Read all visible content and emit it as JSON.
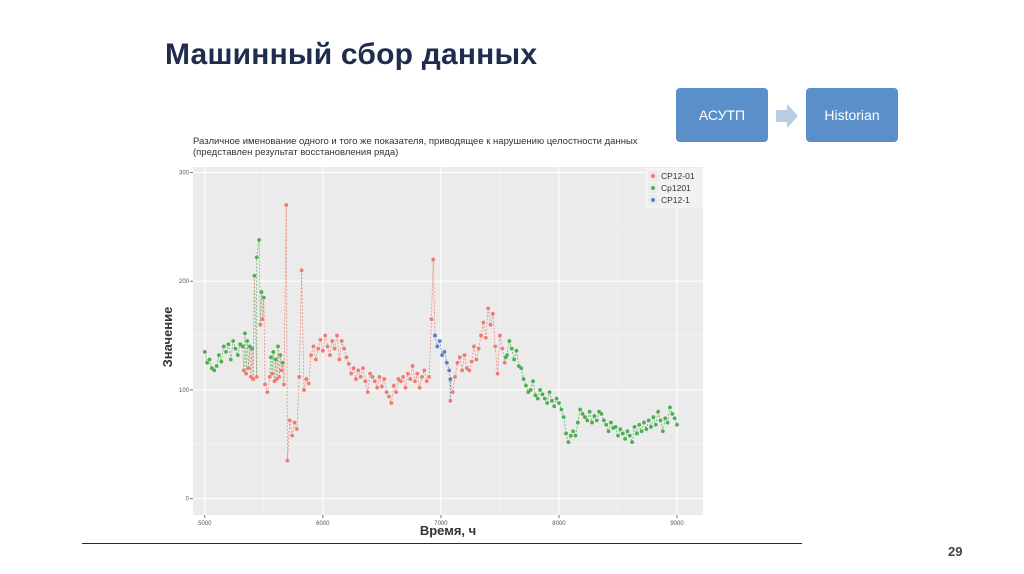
{
  "slide": {
    "title": "Машинный сбор данных",
    "page_number": "29"
  },
  "flow": {
    "from_label": "АСУТП",
    "to_label": "Historian",
    "box_color": "#5b8fc9",
    "arrow_color": "#b8cce4"
  },
  "chart_data": {
    "type": "scatter",
    "title": "Различное именование одного и того же показателя, приводящее к нарушению целостности данных",
    "subtitle": "(представлен результат восстановления ряда)",
    "xlabel": "Время, ч",
    "ylabel": "Значение",
    "xlim": [
      4900,
      9220
    ],
    "ylim": [
      -15,
      305
    ],
    "xticks": [
      5000,
      6000,
      7000,
      8000,
      9000
    ],
    "yticks": [
      0,
      100,
      200,
      300
    ],
    "grid": true,
    "background": "#ebebeb",
    "legend_position": "top-right",
    "connected_by_dashed_line": true,
    "series": [
      {
        "name": "CP12-01",
        "color": "#f07b72",
        "points": [
          [
            5330,
            118
          ],
          [
            5350,
            115
          ],
          [
            5370,
            120
          ],
          [
            5390,
            112
          ],
          [
            5410,
            110
          ],
          [
            5440,
            112
          ],
          [
            5470,
            160
          ],
          [
            5490,
            165
          ],
          [
            5510,
            105
          ],
          [
            5530,
            98
          ],
          [
            5550,
            112
          ],
          [
            5570,
            115
          ],
          [
            5590,
            108
          ],
          [
            5610,
            110
          ],
          [
            5630,
            112
          ],
          [
            5650,
            118
          ],
          [
            5670,
            105
          ],
          [
            5690,
            270
          ],
          [
            5700,
            35
          ],
          [
            5720,
            72
          ],
          [
            5740,
            58
          ],
          [
            5760,
            70
          ],
          [
            5780,
            64
          ],
          [
            5800,
            112
          ],
          [
            5820,
            210
          ],
          [
            5840,
            100
          ],
          [
            5860,
            110
          ],
          [
            5880,
            106
          ],
          [
            5900,
            132
          ],
          [
            5920,
            140
          ],
          [
            5940,
            128
          ],
          [
            5960,
            138
          ],
          [
            5980,
            146
          ],
          [
            6000,
            136
          ],
          [
            6020,
            150
          ],
          [
            6040,
            140
          ],
          [
            6060,
            132
          ],
          [
            6080,
            145
          ],
          [
            6100,
            138
          ],
          [
            6120,
            150
          ],
          [
            6140,
            128
          ],
          [
            6160,
            145
          ],
          [
            6180,
            138
          ],
          [
            6200,
            130
          ],
          [
            6220,
            124
          ],
          [
            6240,
            115
          ],
          [
            6260,
            120
          ],
          [
            6280,
            110
          ],
          [
            6300,
            118
          ],
          [
            6320,
            112
          ],
          [
            6340,
            120
          ],
          [
            6360,
            108
          ],
          [
            6380,
            98
          ],
          [
            6400,
            115
          ],
          [
            6420,
            112
          ],
          [
            6440,
            108
          ],
          [
            6460,
            102
          ],
          [
            6480,
            112
          ],
          [
            6500,
            103
          ],
          [
            6520,
            110
          ],
          [
            6540,
            98
          ],
          [
            6560,
            94
          ],
          [
            6580,
            88
          ],
          [
            6600,
            104
          ],
          [
            6620,
            98
          ],
          [
            6640,
            110
          ],
          [
            6660,
            108
          ],
          [
            6680,
            112
          ],
          [
            6700,
            102
          ],
          [
            6720,
            115
          ],
          [
            6740,
            110
          ],
          [
            6760,
            122
          ],
          [
            6780,
            108
          ],
          [
            6800,
            115
          ],
          [
            6820,
            102
          ],
          [
            6840,
            112
          ],
          [
            6860,
            118
          ],
          [
            6880,
            108
          ],
          [
            6900,
            112
          ],
          [
            6920,
            165
          ],
          [
            6935,
            220
          ],
          [
            6950,
            150
          ],
          [
            7080,
            90
          ],
          [
            7100,
            98
          ],
          [
            7120,
            112
          ],
          [
            7140,
            125
          ],
          [
            7160,
            130
          ],
          [
            7180,
            118
          ],
          [
            7200,
            132
          ],
          [
            7220,
            120
          ],
          [
            7240,
            118
          ],
          [
            7260,
            126
          ],
          [
            7280,
            140
          ],
          [
            7300,
            128
          ],
          [
            7320,
            138
          ],
          [
            7340,
            150
          ],
          [
            7360,
            162
          ],
          [
            7380,
            148
          ],
          [
            7400,
            175
          ],
          [
            7420,
            160
          ],
          [
            7440,
            170
          ],
          [
            7460,
            140
          ],
          [
            7480,
            115
          ],
          [
            7500,
            150
          ],
          [
            7520,
            138
          ],
          [
            7540,
            125
          ]
        ]
      },
      {
        "name": "Cp1201",
        "color": "#4cb050",
        "points": [
          [
            5000,
            135
          ],
          [
            5020,
            125
          ],
          [
            5040,
            128
          ],
          [
            5060,
            120
          ],
          [
            5080,
            118
          ],
          [
            5100,
            122
          ],
          [
            5120,
            132
          ],
          [
            5140,
            126
          ],
          [
            5160,
            140
          ],
          [
            5180,
            135
          ],
          [
            5200,
            142
          ],
          [
            5220,
            128
          ],
          [
            5240,
            145
          ],
          [
            5260,
            138
          ],
          [
            5280,
            132
          ],
          [
            5300,
            142
          ],
          [
            5320,
            140
          ],
          [
            5340,
            152
          ],
          [
            5360,
            145
          ],
          [
            5380,
            140
          ],
          [
            5400,
            138
          ],
          [
            5420,
            205
          ],
          [
            5440,
            222
          ],
          [
            5460,
            238
          ],
          [
            5480,
            190
          ],
          [
            5500,
            185
          ],
          [
            5560,
            130
          ],
          [
            5580,
            135
          ],
          [
            5600,
            128
          ],
          [
            5620,
            140
          ],
          [
            5640,
            132
          ],
          [
            5660,
            125
          ],
          [
            7550,
            130
          ],
          [
            7560,
            132
          ],
          [
            7580,
            145
          ],
          [
            7600,
            138
          ],
          [
            7620,
            128
          ],
          [
            7640,
            136
          ],
          [
            7660,
            122
          ],
          [
            7680,
            120
          ],
          [
            7700,
            110
          ],
          [
            7720,
            104
          ],
          [
            7740,
            98
          ],
          [
            7760,
            100
          ],
          [
            7780,
            108
          ],
          [
            7800,
            95
          ],
          [
            7820,
            92
          ],
          [
            7840,
            100
          ],
          [
            7860,
            96
          ],
          [
            7880,
            92
          ],
          [
            7900,
            88
          ],
          [
            7920,
            98
          ],
          [
            7940,
            90
          ],
          [
            7960,
            85
          ],
          [
            7980,
            92
          ],
          [
            8000,
            88
          ],
          [
            8020,
            82
          ],
          [
            8040,
            75
          ],
          [
            8060,
            60
          ],
          [
            8080,
            52
          ],
          [
            8100,
            58
          ],
          [
            8120,
            62
          ],
          [
            8140,
            58
          ],
          [
            8160,
            70
          ],
          [
            8180,
            82
          ],
          [
            8200,
            78
          ],
          [
            8220,
            75
          ],
          [
            8240,
            72
          ],
          [
            8260,
            80
          ],
          [
            8280,
            70
          ],
          [
            8300,
            76
          ],
          [
            8320,
            72
          ],
          [
            8340,
            80
          ],
          [
            8360,
            78
          ],
          [
            8380,
            72
          ],
          [
            8400,
            68
          ],
          [
            8420,
            62
          ],
          [
            8440,
            70
          ],
          [
            8460,
            65
          ],
          [
            8480,
            66
          ],
          [
            8500,
            58
          ],
          [
            8520,
            64
          ],
          [
            8540,
            60
          ],
          [
            8560,
            55
          ],
          [
            8580,
            62
          ],
          [
            8600,
            58
          ],
          [
            8620,
            52
          ],
          [
            8640,
            66
          ],
          [
            8660,
            60
          ],
          [
            8680,
            68
          ],
          [
            8700,
            62
          ],
          [
            8720,
            70
          ],
          [
            8740,
            64
          ],
          [
            8760,
            72
          ],
          [
            8780,
            66
          ],
          [
            8800,
            75
          ],
          [
            8820,
            68
          ],
          [
            8840,
            80
          ],
          [
            8860,
            72
          ],
          [
            8880,
            62
          ],
          [
            8900,
            74
          ],
          [
            8920,
            70
          ],
          [
            8940,
            84
          ],
          [
            8960,
            78
          ],
          [
            8980,
            74
          ],
          [
            9000,
            68
          ]
        ]
      },
      {
        "name": "CP12-1",
        "color": "#5b7fc4",
        "points": [
          [
            6950,
            150
          ],
          [
            6970,
            140
          ],
          [
            6990,
            145
          ],
          [
            7010,
            132
          ],
          [
            7030,
            135
          ],
          [
            7050,
            125
          ],
          [
            7070,
            118
          ],
          [
            7080,
            110
          ]
        ]
      }
    ]
  }
}
